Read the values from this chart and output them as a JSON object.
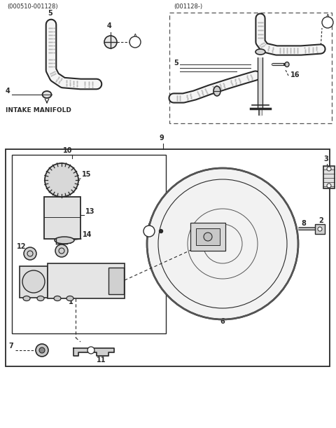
{
  "bg_color": "#ffffff",
  "lc": "#2a2a2a",
  "fig_width": 4.8,
  "fig_height": 6.11,
  "dpi": 100,
  "label_tl": "(000510-001128)",
  "label_tr": "(001128-)",
  "intake": "INTAKE MANIFOLD"
}
